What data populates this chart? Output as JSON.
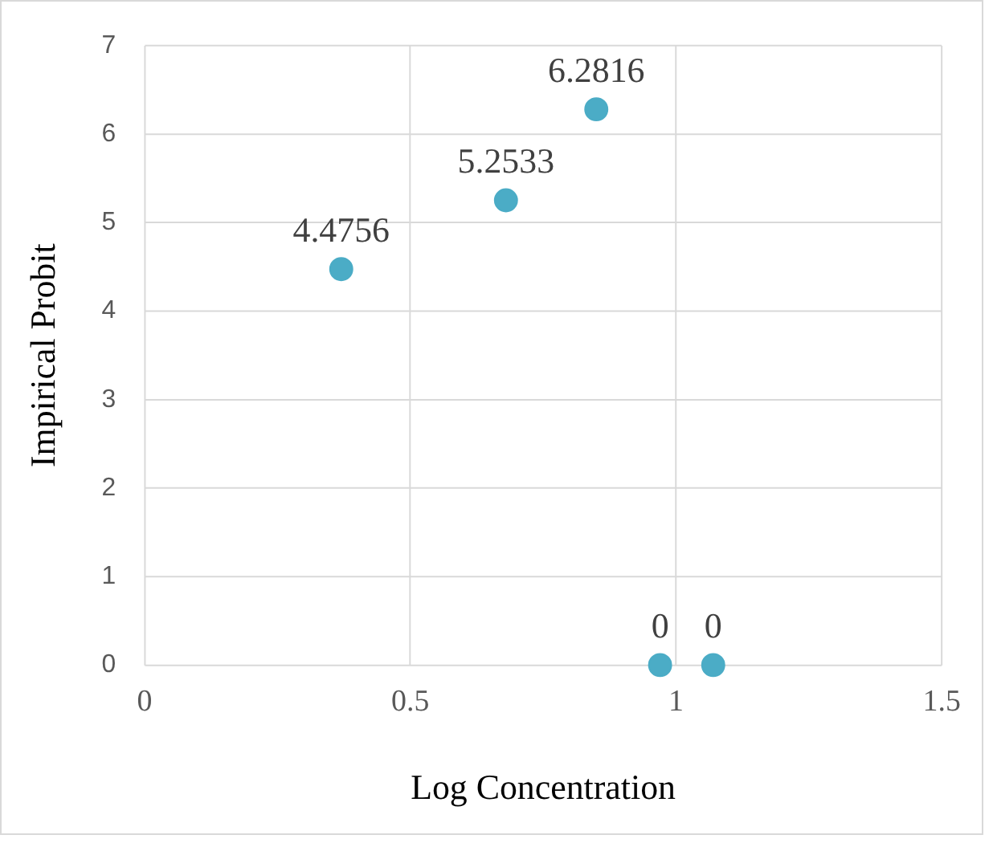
{
  "chart_data": {
    "type": "scatter",
    "xlabel": "Log Concentration",
    "ylabel": "Impirical Probit",
    "x": [
      0.37,
      0.68,
      0.85,
      0.97,
      1.07
    ],
    "values": [
      4.4756,
      5.2533,
      6.2816,
      0,
      0
    ],
    "color": "#4bacc6",
    "marker": "circle",
    "data_labels": true,
    "grid": true,
    "legend": false,
    "xlim": [
      0,
      1.5
    ],
    "xticks": [
      0,
      0.5,
      1,
      1.5
    ],
    "ylim": [
      0,
      7
    ],
    "yticks": [
      0,
      1,
      2,
      3,
      4,
      5,
      6,
      7
    ]
  }
}
